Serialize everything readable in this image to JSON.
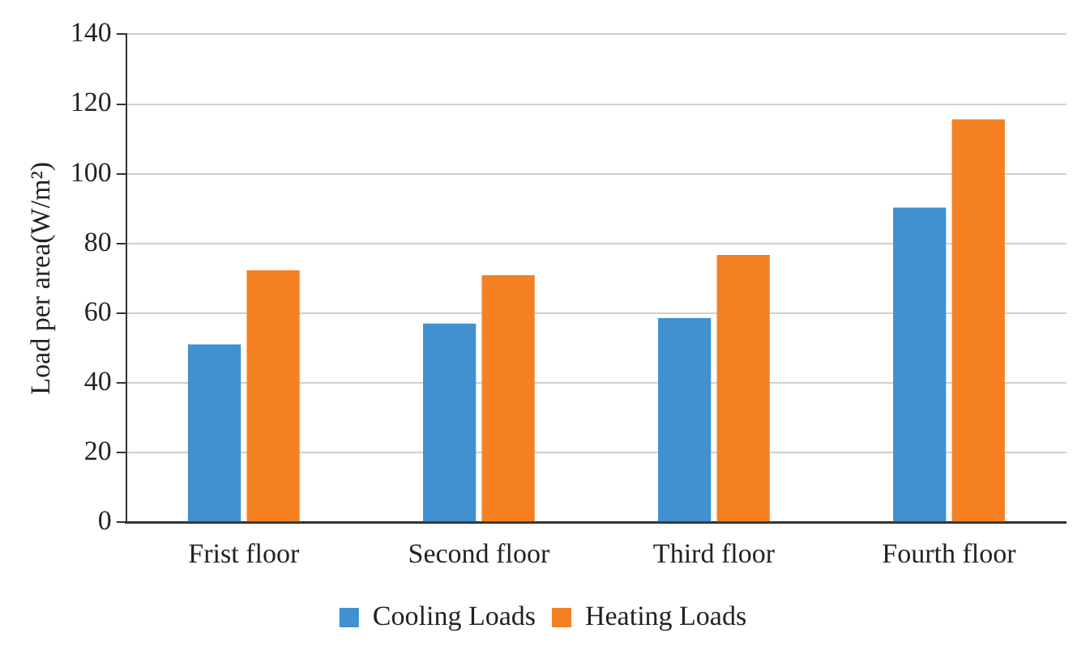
{
  "chart_data": {
    "type": "bar",
    "ylabel": "Load per area(W/m²)",
    "categories": [
      "Frist floor",
      "Second floor",
      "Third floor",
      "Fourth floor"
    ],
    "series": [
      {
        "name": "Cooling Loads",
        "color": "#4190d0",
        "values": [
          51,
          57,
          58.6,
          90.3
        ]
      },
      {
        "name": "Heating Loads",
        "color": "#f58022",
        "values": [
          72.3,
          70.9,
          76.7,
          115.6
        ]
      }
    ],
    "ylim": [
      0,
      140
    ],
    "yticks": [
      0,
      20,
      40,
      60,
      80,
      100,
      120,
      140
    ],
    "grid": "y",
    "legend": "bottom"
  }
}
